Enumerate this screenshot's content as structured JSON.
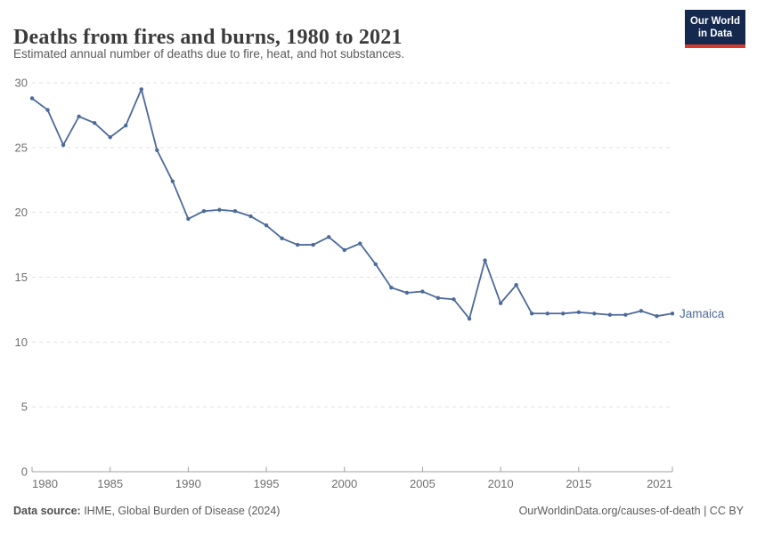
{
  "header": {
    "title": "Deaths from fires and burns, 1980 to 2021",
    "subtitle": "Estimated annual number of deaths due to fire, heat, and hot substances.",
    "logo": {
      "line1": "Our World",
      "line2": "in Data"
    }
  },
  "chart_data": {
    "type": "line",
    "title": "Deaths from fires and burns, 1980 to 2021",
    "subtitle": "Estimated annual number of deaths due to fire, heat, and hot substances.",
    "xlabel": "",
    "ylabel": "",
    "xlim": [
      1980,
      2021
    ],
    "ylim": [
      0,
      30
    ],
    "xticks": [
      1980,
      1985,
      1990,
      1995,
      2000,
      2005,
      2010,
      2015,
      2021
    ],
    "yticks": [
      0,
      5,
      10,
      15,
      20,
      25,
      30
    ],
    "grid": "horizontal-dashed",
    "legend_position": "end-of-line-label",
    "series": [
      {
        "name": "Jamaica",
        "color": "#4C6A9C",
        "x": [
          1980,
          1981,
          1982,
          1983,
          1984,
          1985,
          1986,
          1987,
          1988,
          1989,
          1990,
          1991,
          1992,
          1993,
          1994,
          1995,
          1996,
          1997,
          1998,
          1999,
          2000,
          2001,
          2002,
          2003,
          2004,
          2005,
          2006,
          2007,
          2008,
          2009,
          2010,
          2011,
          2012,
          2013,
          2014,
          2015,
          2016,
          2017,
          2018,
          2019,
          2020,
          2021
        ],
        "values": [
          28.8,
          27.9,
          25.2,
          27.4,
          26.9,
          25.8,
          26.7,
          29.5,
          24.8,
          22.4,
          19.5,
          20.1,
          20.2,
          20.1,
          19.7,
          19.0,
          18.0,
          17.5,
          17.5,
          18.1,
          17.1,
          17.6,
          16.0,
          14.2,
          13.8,
          13.9,
          13.4,
          13.3,
          11.8,
          16.3,
          13.0,
          14.4,
          12.2,
          12.2,
          12.2,
          12.3,
          12.2,
          12.1,
          12.1,
          12.4,
          12.0,
          12.2
        ]
      }
    ],
    "axis_color": "#a0a0a0",
    "grid_color": "#e1e1e1",
    "tick_label_color": "#6f6f6f"
  },
  "footer": {
    "source_label": "Data source:",
    "source_text": " IHME, Global Burden of Disease (2024)",
    "credit": "OurWorldinData.org/causes-of-death | CC BY"
  }
}
